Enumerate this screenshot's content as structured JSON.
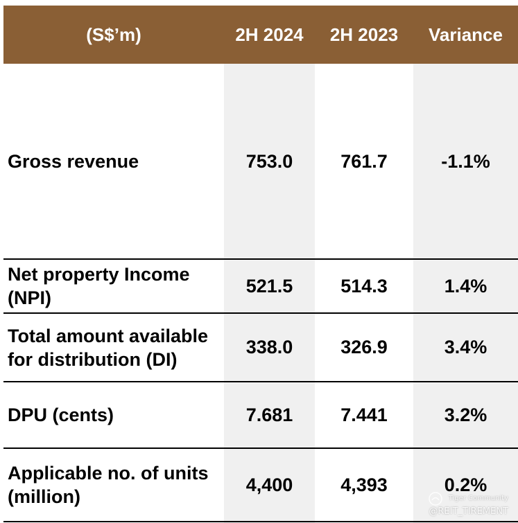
{
  "table": {
    "headers": [
      "(S$’m)",
      "2H 2024",
      "2H 2023",
      "Variance"
    ],
    "rows": [
      {
        "label": "Gross revenue",
        "h2_2024": "753.0",
        "h2_2023": "761.7",
        "variance": "-1.1%"
      },
      {
        "label": "Net property Income\n(NPI)",
        "h2_2024": "521.5",
        "h2_2023": "514.3",
        "variance": "1.4%"
      },
      {
        "label": "Total amount available\nfor distribution (DI)",
        "h2_2024": "338.0",
        "h2_2023": "326.9",
        "variance": "3.4%"
      },
      {
        "label": "DPU (cents)",
        "h2_2024": "7.681",
        "h2_2023": "7.441",
        "variance": "3.2%"
      },
      {
        "label": "Applicable no. of units\n(million)",
        "h2_2024": "4,400",
        "h2_2023": "4,393",
        "variance": "0.2%"
      }
    ]
  },
  "watermark": {
    "brand": "Tiger Community",
    "handle": "@REIT_TIREMENT"
  },
  "colors": {
    "header_bg": "#8a5f35",
    "shade": "#f0f0f0",
    "text": "#000000"
  }
}
